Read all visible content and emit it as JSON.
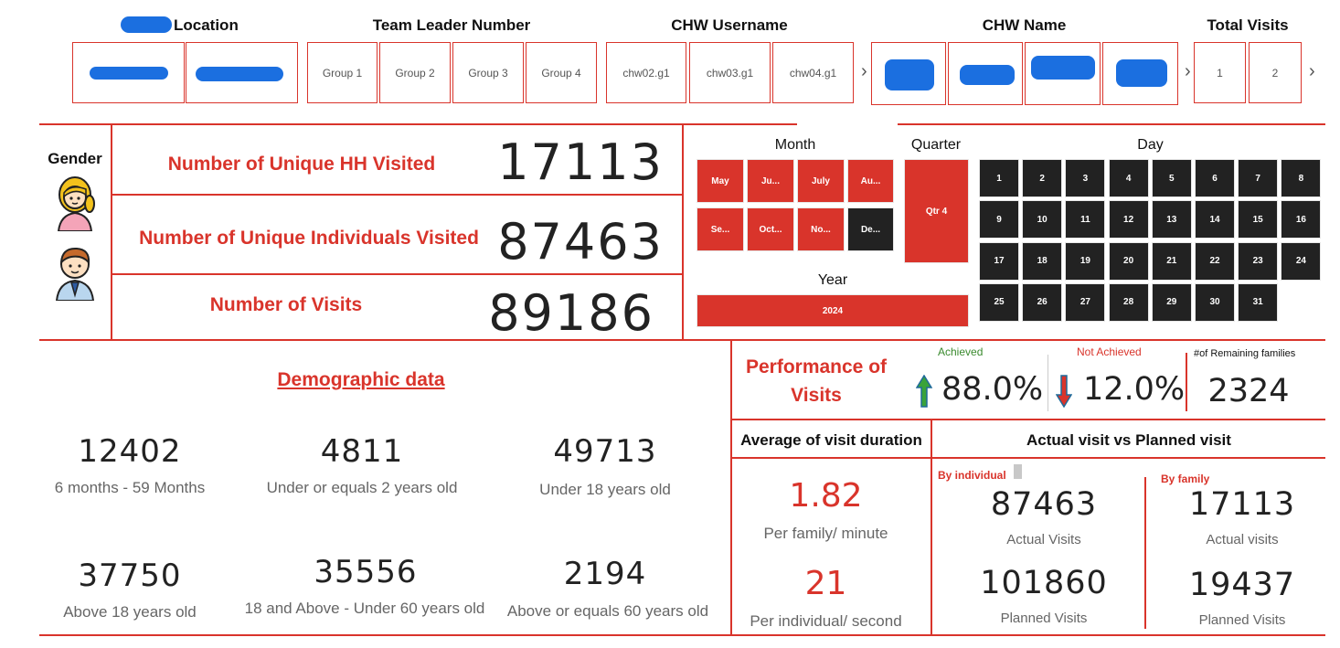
{
  "slicers": {
    "location": {
      "title": "Location"
    },
    "team_leader": {
      "title": "Team Leader Number",
      "items": [
        "Group 1",
        "Group 2",
        "Group 3",
        "Group 4"
      ]
    },
    "chw_username": {
      "title": "CHW Username",
      "items": [
        "chw02.g1",
        "chw03.g1",
        "chw04.g1"
      ]
    },
    "chw_name": {
      "title": "CHW Name"
    },
    "total_visits": {
      "title": "Total Visits",
      "items": [
        "1",
        "2"
      ]
    }
  },
  "icons": {
    "chevron": "›"
  },
  "gender": {
    "title": "Gender"
  },
  "kpis": {
    "hh": {
      "label": "Number of Unique HH Visited",
      "value": "17113"
    },
    "individuals": {
      "label": "Number of Unique Individuals Visited",
      "value": "87463"
    },
    "visits": {
      "label": "Number of Visits",
      "value": "89186"
    }
  },
  "date_filters": {
    "month_title": "Month",
    "months": [
      "May",
      "Ju...",
      "July",
      "Au...",
      "Se...",
      "Oct...",
      "No...",
      "De..."
    ],
    "quarter_title": "Quarter",
    "quarter": "Qtr 4",
    "year_title": "Year",
    "year": "2024",
    "day_title": "Day",
    "days": [
      "1",
      "2",
      "3",
      "4",
      "5",
      "6",
      "7",
      "8",
      "9",
      "10",
      "11",
      "12",
      "13",
      "14",
      "15",
      "16",
      "17",
      "18",
      "19",
      "20",
      "21",
      "22",
      "23",
      "24",
      "25",
      "26",
      "27",
      "28",
      "29",
      "30",
      "31"
    ]
  },
  "demographic": {
    "title": "Demographic data",
    "items": [
      {
        "value": "12402",
        "label": "6 months - 59 Months"
      },
      {
        "value": "4811",
        "label": "Under or equals 2 years old"
      },
      {
        "value": "49713",
        "label": "Under 18 years old"
      },
      {
        "value": "37750",
        "label": "Above 18 years old"
      },
      {
        "value": "35556",
        "label": "18 and Above - Under 60 years old"
      },
      {
        "value": "2194",
        "label": "Above or equals 60 years old"
      }
    ]
  },
  "performance": {
    "title_line1": "Performance of",
    "title_line2": "Visits",
    "achieved_label": "Achieved",
    "achieved_value": "88.0%",
    "not_achieved_label": "Not Achieved",
    "not_achieved_value": "12.0%",
    "remaining_label": "#of Remaining families",
    "remaining_value": "2324"
  },
  "duration": {
    "title": "Average of visit duration",
    "family_value": "1.82",
    "family_label": "Per family/ minute",
    "individual_value": "21",
    "individual_label": "Per individual/ second"
  },
  "actual_vs_planned": {
    "title": "Actual visit vs Planned visit",
    "by_individual": "By individual",
    "by_family": "By family",
    "ind_actual": "87463",
    "ind_actual_label": "Actual Visits",
    "ind_planned": "101860",
    "ind_planned_label": "Planned Visits",
    "fam_actual": "17113",
    "fam_actual_label": "Actual visits",
    "fam_planned": "19437",
    "fam_planned_label": "Planned Visits"
  },
  "colors": {
    "accent": "#d9342b",
    "dark": "#222222",
    "achieved": "#3a8a2e"
  }
}
